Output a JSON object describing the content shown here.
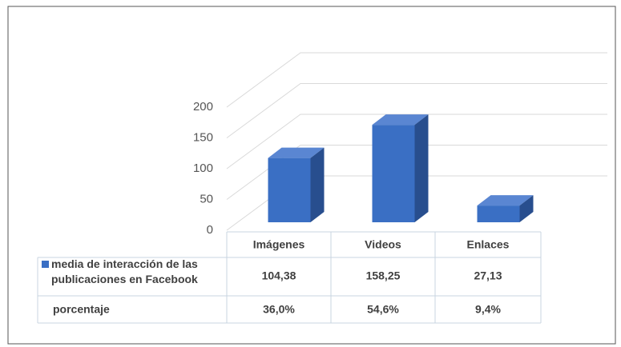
{
  "chart_data": {
    "type": "bar3d",
    "categories": [
      "Imágenes",
      "Videos",
      "Enlaces"
    ],
    "series": [
      {
        "name": "media de interacción de las publicaciones en Facebook",
        "color": "#3a6fc4",
        "values": [
          104.38,
          158.25,
          27.13
        ],
        "value_labels": [
          "104,38",
          "158,25",
          "27,13"
        ]
      }
    ],
    "table_row": {
      "name": "porcentaje",
      "values": [
        36.0,
        54.6,
        9.4
      ],
      "value_labels": [
        "36,0%",
        "54,6%",
        "9,4%"
      ]
    },
    "ylim": [
      0,
      200
    ],
    "yticks": [
      0,
      50,
      100,
      150,
      200
    ],
    "grid": true
  }
}
